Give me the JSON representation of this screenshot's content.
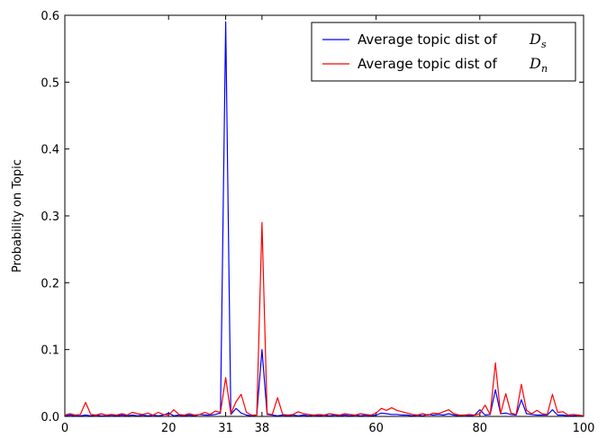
{
  "chart_data": {
    "type": "line",
    "title": "",
    "xlabel": "",
    "ylabel": "Probability on Topic",
    "xlim": [
      0,
      100
    ],
    "ylim": [
      0,
      0.6
    ],
    "xticks": [
      0,
      20,
      31,
      38,
      60,
      80,
      100
    ],
    "yticks": [
      0.0,
      0.1,
      0.2,
      0.3,
      0.4,
      0.5,
      0.6
    ],
    "ytick_labels": [
      "0.0",
      "0.1",
      "0.2",
      "0.3",
      "0.4",
      "0.5",
      "0.6"
    ],
    "legend_position": "top-right",
    "grid": false,
    "series": [
      {
        "name": "Average topic dist of D_s",
        "name_text": "Average topic dist of ",
        "name_symbol": "D",
        "name_sub": "s",
        "color": "#0000ff",
        "x": [
          0,
          1,
          2,
          3,
          4,
          5,
          6,
          7,
          8,
          9,
          10,
          11,
          12,
          13,
          14,
          15,
          16,
          17,
          18,
          19,
          20,
          21,
          22,
          23,
          24,
          25,
          26,
          27,
          28,
          29,
          30,
          31,
          32,
          33,
          34,
          35,
          36,
          37,
          38,
          39,
          40,
          41,
          42,
          43,
          44,
          45,
          46,
          47,
          48,
          49,
          50,
          51,
          52,
          53,
          54,
          55,
          56,
          57,
          58,
          59,
          60,
          61,
          62,
          63,
          64,
          65,
          66,
          67,
          68,
          69,
          70,
          71,
          72,
          73,
          74,
          75,
          76,
          77,
          78,
          79,
          80,
          81,
          82,
          83,
          84,
          85,
          86,
          87,
          88,
          89,
          90,
          91,
          92,
          93,
          94,
          95,
          96,
          97,
          98,
          99,
          100
        ],
        "values": [
          0.001,
          0.002,
          0.001,
          0.001,
          0.002,
          0.001,
          0.002,
          0.001,
          0.001,
          0.002,
          0.001,
          0.002,
          0.001,
          0.002,
          0.001,
          0.002,
          0.001,
          0.002,
          0.001,
          0.002,
          0.005,
          0.001,
          0.002,
          0.001,
          0.002,
          0.001,
          0.003,
          0.002,
          0.002,
          0.003,
          0.005,
          0.59,
          0.003,
          0.012,
          0.005,
          0.002,
          0.001,
          0.002,
          0.1,
          0.003,
          0.002,
          0.001,
          0.002,
          0.001,
          0.002,
          0.001,
          0.002,
          0.001,
          0.002,
          0.001,
          0.002,
          0.001,
          0.002,
          0.001,
          0.002,
          0.001,
          0.002,
          0.001,
          0.002,
          0.001,
          0.002,
          0.005,
          0.004,
          0.003,
          0.003,
          0.002,
          0.002,
          0.001,
          0.002,
          0.001,
          0.003,
          0.002,
          0.003,
          0.002,
          0.004,
          0.002,
          0.001,
          0.002,
          0.001,
          0.002,
          0.01,
          0.002,
          0.003,
          0.04,
          0.004,
          0.005,
          0.003,
          0.002,
          0.025,
          0.004,
          0.003,
          0.002,
          0.002,
          0.002,
          0.01,
          0.002,
          0.002,
          0.001,
          0.001,
          0.002,
          0.001
        ]
      },
      {
        "name": "Average topic dist of D_n",
        "name_text": "Average topic dist of ",
        "name_symbol": "D",
        "name_sub": "n",
        "color": "#ff0000",
        "x": [
          0,
          1,
          2,
          3,
          4,
          5,
          6,
          7,
          8,
          9,
          10,
          11,
          12,
          13,
          14,
          15,
          16,
          17,
          18,
          19,
          20,
          21,
          22,
          23,
          24,
          25,
          26,
          27,
          28,
          29,
          30,
          31,
          32,
          33,
          34,
          35,
          36,
          37,
          38,
          39,
          40,
          41,
          42,
          43,
          44,
          45,
          46,
          47,
          48,
          49,
          50,
          51,
          52,
          53,
          54,
          55,
          56,
          57,
          58,
          59,
          60,
          61,
          62,
          63,
          64,
          65,
          66,
          67,
          68,
          69,
          70,
          71,
          72,
          73,
          74,
          75,
          76,
          77,
          78,
          79,
          80,
          81,
          82,
          83,
          84,
          85,
          86,
          87,
          88,
          89,
          90,
          91,
          92,
          93,
          94,
          95,
          96,
          97,
          98,
          99,
          100
        ],
        "values": [
          0.002,
          0.004,
          0.002,
          0.003,
          0.021,
          0.003,
          0.002,
          0.004,
          0.002,
          0.003,
          0.002,
          0.004,
          0.002,
          0.006,
          0.004,
          0.003,
          0.005,
          0.002,
          0.006,
          0.003,
          0.002,
          0.01,
          0.003,
          0.002,
          0.004,
          0.002,
          0.003,
          0.006,
          0.003,
          0.008,
          0.006,
          0.058,
          0.004,
          0.022,
          0.033,
          0.006,
          0.002,
          0.002,
          0.29,
          0.004,
          0.003,
          0.028,
          0.003,
          0.002,
          0.003,
          0.007,
          0.004,
          0.003,
          0.002,
          0.003,
          0.002,
          0.004,
          0.003,
          0.002,
          0.004,
          0.003,
          0.002,
          0.004,
          0.003,
          0.002,
          0.005,
          0.012,
          0.009,
          0.013,
          0.009,
          0.007,
          0.005,
          0.003,
          0.002,
          0.004,
          0.002,
          0.005,
          0.004,
          0.007,
          0.01,
          0.004,
          0.002,
          0.002,
          0.003,
          0.002,
          0.004,
          0.017,
          0.003,
          0.08,
          0.004,
          0.034,
          0.005,
          0.003,
          0.048,
          0.009,
          0.004,
          0.009,
          0.004,
          0.003,
          0.033,
          0.006,
          0.007,
          0.002,
          0.003,
          0.002,
          0.001
        ]
      }
    ]
  }
}
